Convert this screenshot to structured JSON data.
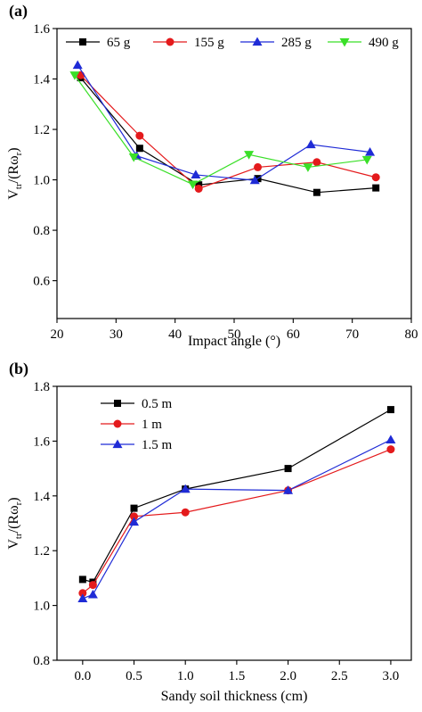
{
  "chart_data": [
    {
      "type": "line",
      "panel_label": "(a)",
      "xlabel": "Impact angle (°)",
      "ylabel": "V_tr/(Rω_r)",
      "ylabel_parts": {
        "main": "V",
        "sub1": "tr",
        "mid": "/(Rω",
        "sub2": "r",
        "end": ")"
      },
      "xlim": [
        20,
        80
      ],
      "ylim": [
        0.45,
        1.6
      ],
      "xticks": [
        20,
        30,
        40,
        50,
        60,
        70,
        80
      ],
      "yticks": [
        0.6,
        0.8,
        1.0,
        1.2,
        1.4,
        1.6
      ],
      "xtick_labels": [
        "20",
        "30",
        "40",
        "50",
        "60",
        "70",
        "80"
      ],
      "ytick_labels": [
        "0.6",
        "0.8",
        "1.0",
        "1.2",
        "1.4",
        "1.6"
      ],
      "legend_position": "top",
      "grid": false,
      "series": [
        {
          "name": "65 g",
          "color": "#000000",
          "marker": "square",
          "x": [
            24,
            34,
            44,
            54,
            64,
            74
          ],
          "y": [
            1.405,
            1.125,
            0.98,
            1.005,
            0.95,
            0.968
          ]
        },
        {
          "name": "155 g",
          "color": "#e41a1c",
          "marker": "circle",
          "x": [
            24,
            34,
            44,
            54,
            64,
            74
          ],
          "y": [
            1.415,
            1.175,
            0.965,
            1.05,
            1.07,
            1.01
          ]
        },
        {
          "name": "285 g",
          "color": "#1f2bd6",
          "marker": "triangle-up",
          "x": [
            23.5,
            33.5,
            43.5,
            53.5,
            63,
            73
          ],
          "y": [
            1.455,
            1.095,
            1.02,
            0.998,
            1.14,
            1.11
          ]
        },
        {
          "name": "490 g",
          "color": "#3adf28",
          "marker": "triangle-down",
          "x": [
            23,
            33,
            43,
            52.5,
            62.5,
            72.5
          ],
          "y": [
            1.415,
            1.09,
            0.982,
            1.1,
            1.05,
            1.08
          ]
        }
      ]
    },
    {
      "type": "line",
      "panel_label": "(b)",
      "xlabel": "Sandy soil thickness (cm)",
      "ylabel": "V_tr/(Rω_r)",
      "ylabel_parts": {
        "main": "V",
        "sub1": "tr",
        "mid": "/(Rω",
        "sub2": "r",
        "end": ")"
      },
      "xlim": [
        -0.25,
        3.2
      ],
      "ylim": [
        0.8,
        1.8
      ],
      "xticks": [
        0.0,
        0.5,
        1.0,
        1.5,
        2.0,
        2.5,
        3.0
      ],
      "yticks": [
        0.8,
        1.0,
        1.2,
        1.4,
        1.6,
        1.8
      ],
      "xtick_labels": [
        "0.0",
        "0.5",
        "1.0",
        "1.5",
        "2.0",
        "2.5",
        "3.0"
      ],
      "ytick_labels": [
        "0.8",
        "1.0",
        "1.2",
        "1.4",
        "1.6",
        "1.8"
      ],
      "legend_position": "top-left",
      "grid": false,
      "series": [
        {
          "name": "0.5 m",
          "color": "#000000",
          "marker": "square",
          "x": [
            0.0,
            0.1,
            0.5,
            1.0,
            2.0,
            3.0
          ],
          "y": [
            1.095,
            1.085,
            1.355,
            1.425,
            1.5,
            1.715
          ]
        },
        {
          "name": "1 m",
          "color": "#e41a1c",
          "marker": "circle",
          "x": [
            0.0,
            0.1,
            0.5,
            1.0,
            2.0,
            3.0
          ],
          "y": [
            1.045,
            1.075,
            1.325,
            1.34,
            1.42,
            1.57
          ]
        },
        {
          "name": "1.5 m",
          "color": "#1f2bd6",
          "marker": "triangle-up",
          "x": [
            0.0,
            0.1,
            0.5,
            1.0,
            2.0,
            3.0
          ],
          "y": [
            1.025,
            1.04,
            1.305,
            1.425,
            1.42,
            1.605
          ]
        }
      ]
    }
  ]
}
